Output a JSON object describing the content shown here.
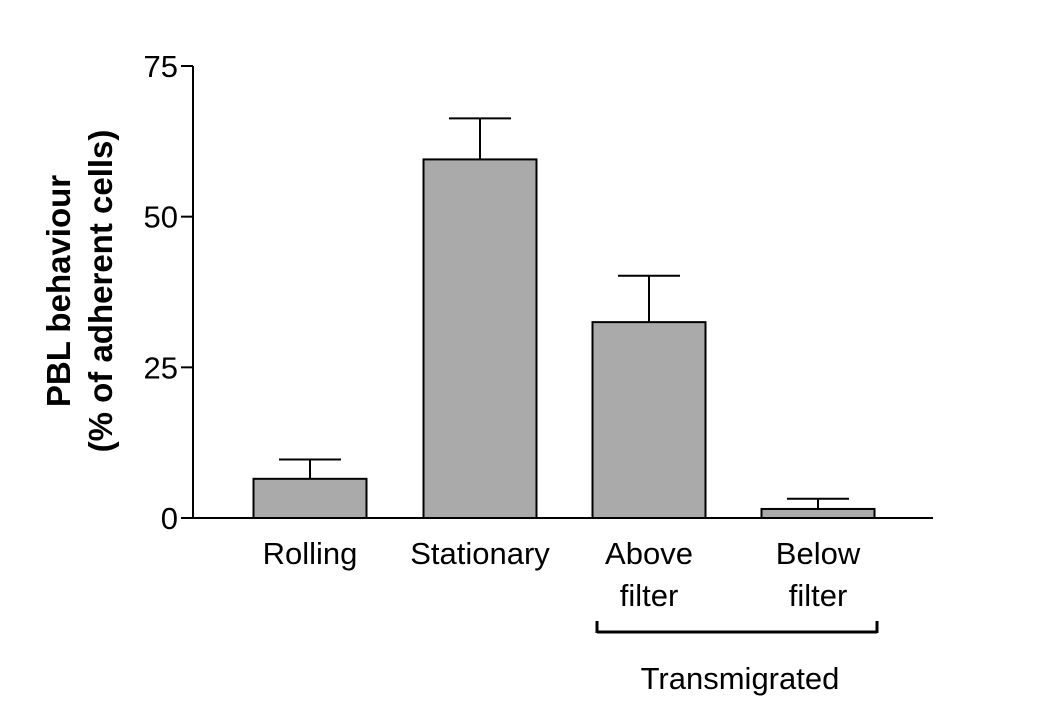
{
  "chart_data": {
    "type": "bar",
    "categories": [
      [
        "Rolling"
      ],
      [
        "Stationary"
      ],
      [
        "Above",
        "filter"
      ],
      [
        "Below",
        "filter"
      ]
    ],
    "values": [
      6.5,
      59.5,
      32.5,
      1.5
    ],
    "errors": [
      3.2,
      6.8,
      7.7,
      1.7
    ],
    "ylabel": [
      "PBL behaviour",
      "(% of adherent cells)"
    ],
    "ylim": [
      0,
      75
    ],
    "yticks": [
      0,
      25,
      50,
      75
    ],
    "bar_color": "#aaaaaa",
    "group_bracket": {
      "label": "Transmigrated",
      "from_index": 2,
      "to_index": 3
    }
  }
}
